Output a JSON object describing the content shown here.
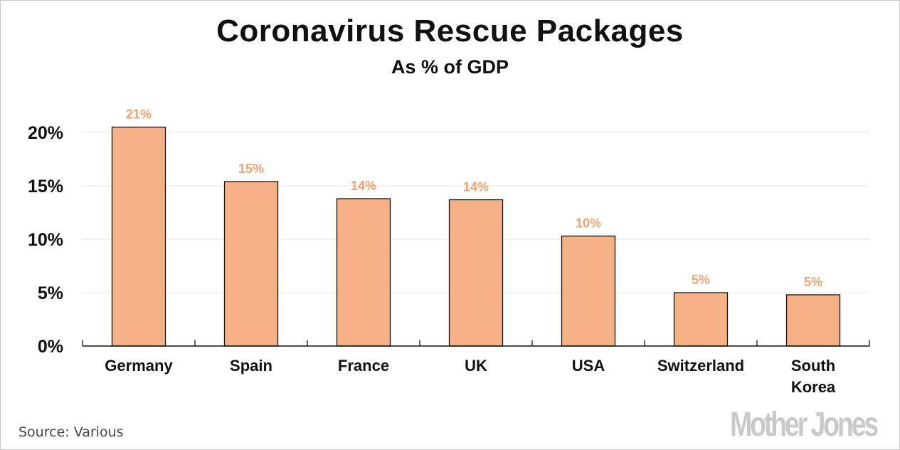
{
  "chart_data": {
    "type": "bar",
    "title": "Coronavirus Rescue Packages",
    "subtitle": "As % of GDP",
    "xlabel": "",
    "ylabel": "",
    "categories": [
      "Germany",
      "Spain",
      "France",
      "UK",
      "USA",
      "Switzerland",
      "South Korea"
    ],
    "category_lines": [
      [
        "Germany"
      ],
      [
        "Spain"
      ],
      [
        "France"
      ],
      [
        "UK"
      ],
      [
        "USA"
      ],
      [
        "Switzerland"
      ],
      [
        "South",
        "Korea"
      ]
    ],
    "values": [
      20.5,
      15.4,
      13.8,
      13.7,
      10.3,
      5.0,
      4.8
    ],
    "data_labels": [
      "21%",
      "15%",
      "14%",
      "14%",
      "10%",
      "5%",
      "5%"
    ],
    "ylim": [
      0,
      20
    ],
    "yticks": [
      0,
      5,
      10,
      15,
      20
    ],
    "ytick_labels": [
      "0%",
      "5%",
      "10%",
      "15%",
      "20%"
    ],
    "grid": true,
    "legend": "none",
    "colors": {
      "bar_fill": "#f3b185",
      "bar_stroke": "#111111",
      "data_label": "#f0a26f",
      "grid": "#e6e6e6",
      "axis": "#111111"
    }
  },
  "footer": {
    "source": "Source: Various",
    "logo": "Mother Jones"
  }
}
